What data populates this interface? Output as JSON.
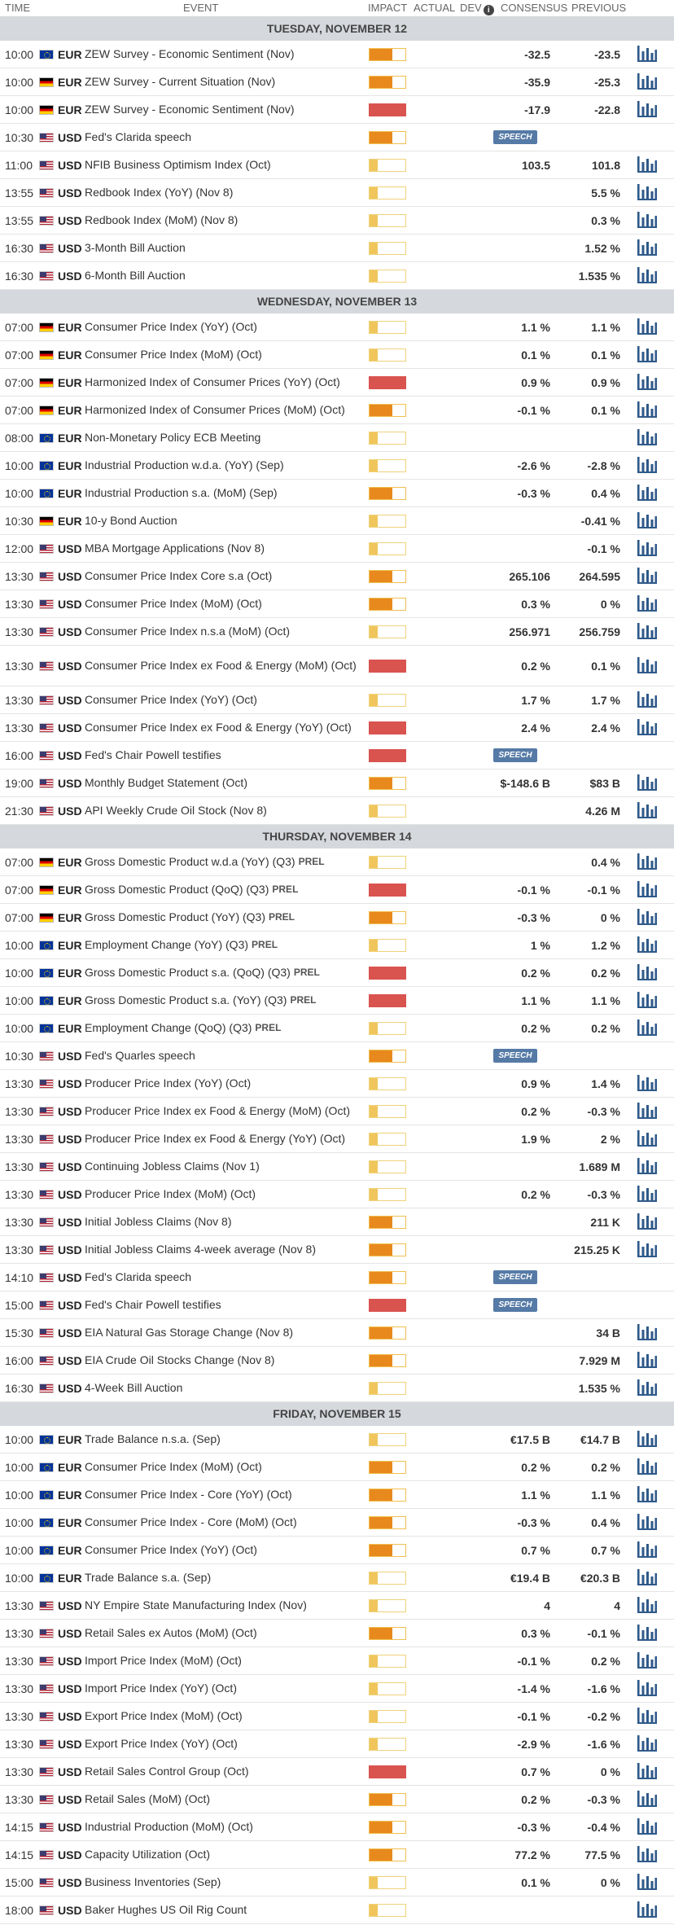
{
  "headers": {
    "time": "TIME",
    "event": "EVENT",
    "impact": "IMPACT",
    "actual": "ACTUAL",
    "dev": "DEV",
    "consensus": "CONSENSUS",
    "previous": "PREVIOUS"
  },
  "days": [
    {
      "title": "TUESDAY, NOVEMBER 12",
      "events": [
        {
          "time": "10:00",
          "flag": "eu",
          "currency": "EUR",
          "name": "ZEW Survey - Economic Sentiment (Nov)",
          "impact": "med",
          "consensus": "-32.5",
          "previous": "-23.5",
          "chart": true
        },
        {
          "time": "10:00",
          "flag": "de",
          "currency": "EUR",
          "name": "ZEW Survey - Current Situation (Nov)",
          "impact": "med",
          "consensus": "-35.9",
          "previous": "-25.3",
          "chart": true
        },
        {
          "time": "10:00",
          "flag": "de",
          "currency": "EUR",
          "name": "ZEW Survey - Economic Sentiment (Nov)",
          "impact": "high",
          "consensus": "-17.9",
          "previous": "-22.8",
          "chart": true
        },
        {
          "time": "10:30",
          "flag": "us",
          "currency": "USD",
          "name": "Fed's Clarida speech",
          "impact": "med",
          "speech": "SPEECH",
          "chart": false
        },
        {
          "time": "11:00",
          "flag": "us",
          "currency": "USD",
          "name": "NFIB Business Optimism Index (Oct)",
          "impact": "low",
          "consensus": "103.5",
          "previous": "101.8",
          "chart": true
        },
        {
          "time": "13:55",
          "flag": "us",
          "currency": "USD",
          "name": "Redbook Index (YoY) (Nov 8)",
          "impact": "low",
          "consensus": "",
          "previous": "5.5 %",
          "chart": true
        },
        {
          "time": "13:55",
          "flag": "us",
          "currency": "USD",
          "name": "Redbook Index (MoM) (Nov 8)",
          "impact": "low",
          "consensus": "",
          "previous": "0.3 %",
          "chart": true
        },
        {
          "time": "16:30",
          "flag": "us",
          "currency": "USD",
          "name": "3-Month Bill Auction",
          "impact": "low",
          "consensus": "",
          "previous": "1.52 %",
          "chart": true
        },
        {
          "time": "16:30",
          "flag": "us",
          "currency": "USD",
          "name": "6-Month Bill Auction",
          "impact": "low",
          "consensus": "",
          "previous": "1.535 %",
          "chart": true
        }
      ]
    },
    {
      "title": "WEDNESDAY, NOVEMBER 13",
      "events": [
        {
          "time": "07:00",
          "flag": "de",
          "currency": "EUR",
          "name": "Consumer Price Index (YoY) (Oct)",
          "impact": "low",
          "consensus": "1.1 %",
          "previous": "1.1 %",
          "chart": true
        },
        {
          "time": "07:00",
          "flag": "de",
          "currency": "EUR",
          "name": "Consumer Price Index (MoM) (Oct)",
          "impact": "low",
          "consensus": "0.1 %",
          "previous": "0.1 %",
          "chart": true
        },
        {
          "time": "07:00",
          "flag": "de",
          "currency": "EUR",
          "name": "Harmonized Index of Consumer Prices (YoY) (Oct)",
          "impact": "high",
          "consensus": "0.9 %",
          "previous": "0.9 %",
          "chart": true
        },
        {
          "time": "07:00",
          "flag": "de",
          "currency": "EUR",
          "name": "Harmonized Index of Consumer Prices (MoM) (Oct)",
          "impact": "med",
          "consensus": "-0.1 %",
          "previous": "0.1 %",
          "chart": true
        },
        {
          "time": "08:00",
          "flag": "eu",
          "currency": "EUR",
          "name": "Non-Monetary Policy ECB Meeting",
          "impact": "low",
          "consensus": "",
          "previous": "",
          "chart": true
        },
        {
          "time": "10:00",
          "flag": "eu",
          "currency": "EUR",
          "name": "Industrial Production w.d.a. (YoY) (Sep)",
          "impact": "low",
          "consensus": "-2.6 %",
          "previous": "-2.8 %",
          "chart": true
        },
        {
          "time": "10:00",
          "flag": "eu",
          "currency": "EUR",
          "name": "Industrial Production s.a. (MoM) (Sep)",
          "impact": "med",
          "consensus": "-0.3 %",
          "previous": "0.4 %",
          "chart": true
        },
        {
          "time": "10:30",
          "flag": "de",
          "currency": "EUR",
          "name": "10-y Bond Auction",
          "impact": "low",
          "consensus": "",
          "previous": "-0.41 %",
          "chart": true
        },
        {
          "time": "12:00",
          "flag": "us",
          "currency": "USD",
          "name": "MBA Mortgage Applications (Nov 8)",
          "impact": "low",
          "consensus": "",
          "previous": "-0.1 %",
          "chart": true
        },
        {
          "time": "13:30",
          "flag": "us",
          "currency": "USD",
          "name": "Consumer Price Index Core s.a (Oct)",
          "impact": "med",
          "consensus": "265.106",
          "previous": "264.595",
          "chart": true
        },
        {
          "time": "13:30",
          "flag": "us",
          "currency": "USD",
          "name": "Consumer Price Index (MoM) (Oct)",
          "impact": "med",
          "consensus": "0.3 %",
          "previous": "0 %",
          "chart": true
        },
        {
          "time": "13:30",
          "flag": "us",
          "currency": "USD",
          "name": "Consumer Price Index n.s.a (MoM) (Oct)",
          "impact": "low",
          "consensus": "256.971",
          "previous": "256.759",
          "chart": true
        },
        {
          "time": "13:30",
          "flag": "us",
          "currency": "USD",
          "name": "Consumer Price Index ex Food & Energy (MoM) (Oct)",
          "impact": "high",
          "consensus": "0.2 %",
          "previous": "0.1 %",
          "chart": true,
          "tall": true
        },
        {
          "time": "13:30",
          "flag": "us",
          "currency": "USD",
          "name": "Consumer Price Index (YoY) (Oct)",
          "impact": "low",
          "consensus": "1.7 %",
          "previous": "1.7 %",
          "chart": true
        },
        {
          "time": "13:30",
          "flag": "us",
          "currency": "USD",
          "name": "Consumer Price Index ex Food & Energy (YoY) (Oct)",
          "impact": "high",
          "consensus": "2.4 %",
          "previous": "2.4 %",
          "chart": true
        },
        {
          "time": "16:00",
          "flag": "us",
          "currency": "USD",
          "name": "Fed's Chair Powell testifies",
          "impact": "high",
          "speech": "SPEECH",
          "chart": false
        },
        {
          "time": "19:00",
          "flag": "us",
          "currency": "USD",
          "name": "Monthly Budget Statement (Oct)",
          "impact": "med",
          "consensus": "$-148.6 B",
          "previous": "$83 B",
          "chart": true
        },
        {
          "time": "21:30",
          "flag": "us",
          "currency": "USD",
          "name": "API Weekly Crude Oil Stock (Nov 8)",
          "impact": "low",
          "consensus": "",
          "previous": "4.26 M",
          "chart": true
        }
      ]
    },
    {
      "title": "THURSDAY, NOVEMBER 14",
      "events": [
        {
          "time": "07:00",
          "flag": "de",
          "currency": "EUR",
          "name": "Gross Domestic Product w.d.a (YoY) (Q3)",
          "prel": "PREL",
          "impact": "low",
          "consensus": "",
          "previous": "0.4 %",
          "chart": true
        },
        {
          "time": "07:00",
          "flag": "de",
          "currency": "EUR",
          "name": "Gross Domestic Product (QoQ) (Q3)",
          "prel": "PREL",
          "impact": "high",
          "consensus": "-0.1 %",
          "previous": "-0.1 %",
          "chart": true
        },
        {
          "time": "07:00",
          "flag": "de",
          "currency": "EUR",
          "name": "Gross Domestic Product (YoY) (Q3)",
          "prel": "PREL",
          "impact": "med",
          "consensus": "-0.3 %",
          "previous": "0 %",
          "chart": true
        },
        {
          "time": "10:00",
          "flag": "eu",
          "currency": "EUR",
          "name": "Employment Change (YoY) (Q3)",
          "prel": "PREL",
          "impact": "low",
          "consensus": "1 %",
          "previous": "1.2 %",
          "chart": true
        },
        {
          "time": "10:00",
          "flag": "eu",
          "currency": "EUR",
          "name": "Gross Domestic Product s.a. (QoQ) (Q3)",
          "prel": "PREL",
          "impact": "high",
          "consensus": "0.2 %",
          "previous": "0.2 %",
          "chart": true
        },
        {
          "time": "10:00",
          "flag": "eu",
          "currency": "EUR",
          "name": "Gross Domestic Product s.a. (YoY) (Q3)",
          "prel": "PREL",
          "impact": "high",
          "consensus": "1.1 %",
          "previous": "1.1 %",
          "chart": true
        },
        {
          "time": "10:00",
          "flag": "eu",
          "currency": "EUR",
          "name": "Employment Change (QoQ) (Q3)",
          "prel": "PREL",
          "impact": "low",
          "consensus": "0.2 %",
          "previous": "0.2 %",
          "chart": true
        },
        {
          "time": "10:30",
          "flag": "us",
          "currency": "USD",
          "name": "Fed's Quarles speech",
          "impact": "med",
          "speech": "SPEECH",
          "chart": false
        },
        {
          "time": "13:30",
          "flag": "us",
          "currency": "USD",
          "name": "Producer Price Index (YoY) (Oct)",
          "impact": "low",
          "consensus": "0.9 %",
          "previous": "1.4 %",
          "chart": true
        },
        {
          "time": "13:30",
          "flag": "us",
          "currency": "USD",
          "name": "Producer Price Index ex Food & Energy (MoM) (Oct)",
          "impact": "low",
          "consensus": "0.2 %",
          "previous": "-0.3 %",
          "chart": true
        },
        {
          "time": "13:30",
          "flag": "us",
          "currency": "USD",
          "name": "Producer Price Index ex Food & Energy (YoY) (Oct)",
          "impact": "low",
          "consensus": "1.9 %",
          "previous": "2 %",
          "chart": true
        },
        {
          "time": "13:30",
          "flag": "us",
          "currency": "USD",
          "name": "Continuing Jobless Claims (Nov 1)",
          "impact": "low",
          "consensus": "",
          "previous": "1.689 M",
          "chart": true
        },
        {
          "time": "13:30",
          "flag": "us",
          "currency": "USD",
          "name": "Producer Price Index (MoM) (Oct)",
          "impact": "low",
          "consensus": "0.2 %",
          "previous": "-0.3 %",
          "chart": true
        },
        {
          "time": "13:30",
          "flag": "us",
          "currency": "USD",
          "name": "Initial Jobless Claims (Nov 8)",
          "impact": "med",
          "consensus": "",
          "previous": "211 K",
          "chart": true
        },
        {
          "time": "13:30",
          "flag": "us",
          "currency": "USD",
          "name": "Initial Jobless Claims 4-week average (Nov 8)",
          "impact": "med",
          "consensus": "",
          "previous": "215.25 K",
          "chart": true
        },
        {
          "time": "14:10",
          "flag": "us",
          "currency": "USD",
          "name": "Fed's Clarida speech",
          "impact": "med",
          "speech": "SPEECH",
          "chart": false
        },
        {
          "time": "15:00",
          "flag": "us",
          "currency": "USD",
          "name": "Fed's Chair Powell testifies",
          "impact": "high",
          "speech": "SPEECH",
          "chart": false
        },
        {
          "time": "15:30",
          "flag": "us",
          "currency": "USD",
          "name": "EIA Natural Gas Storage Change (Nov 8)",
          "impact": "med",
          "consensus": "",
          "previous": "34 B",
          "chart": true
        },
        {
          "time": "16:00",
          "flag": "us",
          "currency": "USD",
          "name": "EIA Crude Oil Stocks Change (Nov 8)",
          "impact": "med",
          "consensus": "",
          "previous": "7.929 M",
          "chart": true
        },
        {
          "time": "16:30",
          "flag": "us",
          "currency": "USD",
          "name": "4-Week Bill Auction",
          "impact": "low",
          "consensus": "",
          "previous": "1.535 %",
          "chart": true
        }
      ]
    },
    {
      "title": "FRIDAY, NOVEMBER 15",
      "events": [
        {
          "time": "10:00",
          "flag": "eu",
          "currency": "EUR",
          "name": "Trade Balance n.s.a. (Sep)",
          "impact": "low",
          "consensus": "€17.5 B",
          "previous": "€14.7 B",
          "chart": true
        },
        {
          "time": "10:00",
          "flag": "eu",
          "currency": "EUR",
          "name": "Consumer Price Index (MoM) (Oct)",
          "impact": "med",
          "consensus": "0.2 %",
          "previous": "0.2 %",
          "chart": true
        },
        {
          "time": "10:00",
          "flag": "eu",
          "currency": "EUR",
          "name": "Consumer Price Index - Core (YoY) (Oct)",
          "impact": "med",
          "consensus": "1.1 %",
          "previous": "1.1 %",
          "chart": true
        },
        {
          "time": "10:00",
          "flag": "eu",
          "currency": "EUR",
          "name": "Consumer Price Index - Core (MoM) (Oct)",
          "impact": "med",
          "consensus": "-0.3 %",
          "previous": "0.4 %",
          "chart": true
        },
        {
          "time": "10:00",
          "flag": "eu",
          "currency": "EUR",
          "name": "Consumer Price Index (YoY) (Oct)",
          "impact": "med",
          "consensus": "0.7 %",
          "previous": "0.7 %",
          "chart": true
        },
        {
          "time": "10:00",
          "flag": "eu",
          "currency": "EUR",
          "name": "Trade Balance s.a. (Sep)",
          "impact": "low",
          "consensus": "€19.4 B",
          "previous": "€20.3 B",
          "chart": true
        },
        {
          "time": "13:30",
          "flag": "us",
          "currency": "USD",
          "name": "NY Empire State Manufacturing Index (Nov)",
          "impact": "low",
          "consensus": "4",
          "previous": "4",
          "chart": true
        },
        {
          "time": "13:30",
          "flag": "us",
          "currency": "USD",
          "name": "Retail Sales ex Autos (MoM) (Oct)",
          "impact": "med",
          "consensus": "0.3 %",
          "previous": "-0.1 %",
          "chart": true
        },
        {
          "time": "13:30",
          "flag": "us",
          "currency": "USD",
          "name": "Import Price Index (MoM) (Oct)",
          "impact": "low",
          "consensus": "-0.1 %",
          "previous": "0.2 %",
          "chart": true
        },
        {
          "time": "13:30",
          "flag": "us",
          "currency": "USD",
          "name": "Import Price Index (YoY) (Oct)",
          "impact": "low",
          "consensus": "-1.4 %",
          "previous": "-1.6 %",
          "chart": true
        },
        {
          "time": "13:30",
          "flag": "us",
          "currency": "USD",
          "name": "Export Price Index (MoM) (Oct)",
          "impact": "low",
          "consensus": "-0.1 %",
          "previous": "-0.2 %",
          "chart": true
        },
        {
          "time": "13:30",
          "flag": "us",
          "currency": "USD",
          "name": "Export Price Index (YoY) (Oct)",
          "impact": "low",
          "consensus": "-2.9 %",
          "previous": "-1.6 %",
          "chart": true
        },
        {
          "time": "13:30",
          "flag": "us",
          "currency": "USD",
          "name": "Retail Sales Control Group (Oct)",
          "impact": "high",
          "consensus": "0.7 %",
          "previous": "0 %",
          "chart": true
        },
        {
          "time": "13:30",
          "flag": "us",
          "currency": "USD",
          "name": "Retail Sales (MoM) (Oct)",
          "impact": "med",
          "consensus": "0.2 %",
          "previous": "-0.3 %",
          "chart": true
        },
        {
          "time": "14:15",
          "flag": "us",
          "currency": "USD",
          "name": "Industrial Production (MoM) (Oct)",
          "impact": "med",
          "consensus": "-0.3 %",
          "previous": "-0.4 %",
          "chart": true
        },
        {
          "time": "14:15",
          "flag": "us",
          "currency": "USD",
          "name": "Capacity Utilization (Oct)",
          "impact": "med",
          "consensus": "77.2 %",
          "previous": "77.5 %",
          "chart": true
        },
        {
          "time": "15:00",
          "flag": "us",
          "currency": "USD",
          "name": "Business Inventories (Sep)",
          "impact": "low",
          "consensus": "0.1 %",
          "previous": "0 %",
          "chart": true
        },
        {
          "time": "18:00",
          "flag": "us",
          "currency": "USD",
          "name": "Baker Hughes US Oil Rig Count",
          "impact": "low",
          "consensus": "",
          "previous": "",
          "chart": true
        }
      ]
    }
  ]
}
